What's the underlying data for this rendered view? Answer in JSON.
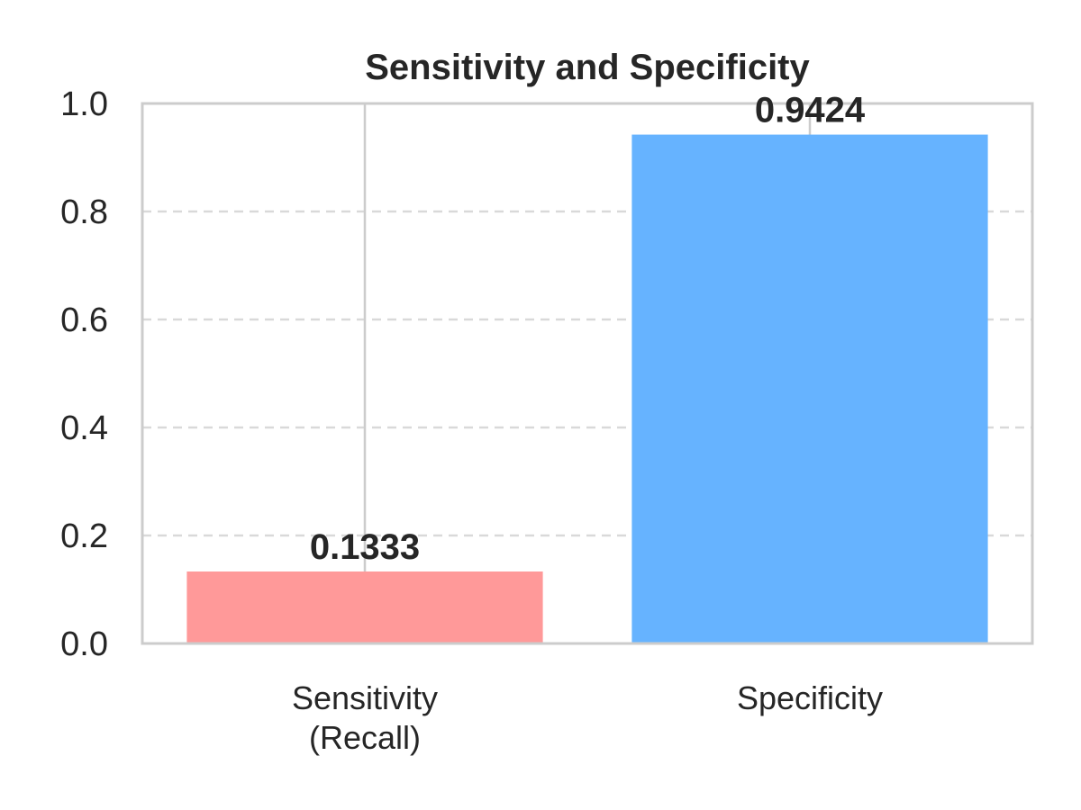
{
  "chart_data": {
    "type": "bar",
    "title": "Sensitivity and Specificity",
    "categories": [
      [
        "Sensitivity",
        "(Recall)"
      ],
      [
        "Specificity"
      ]
    ],
    "values": [
      0.1333,
      0.9424
    ],
    "value_labels": [
      "0.1333",
      "0.9424"
    ],
    "colors": [
      "#ff9999",
      "#66b3ff"
    ],
    "ylim": [
      0.0,
      1.0
    ],
    "yticks": [
      0.0,
      0.2,
      0.4,
      0.6,
      0.8,
      1.0
    ],
    "ytick_labels": [
      "0.0",
      "0.2",
      "0.4",
      "0.6",
      "0.8",
      "1.0"
    ],
    "grid": true,
    "xlabel": "",
    "ylabel": ""
  }
}
